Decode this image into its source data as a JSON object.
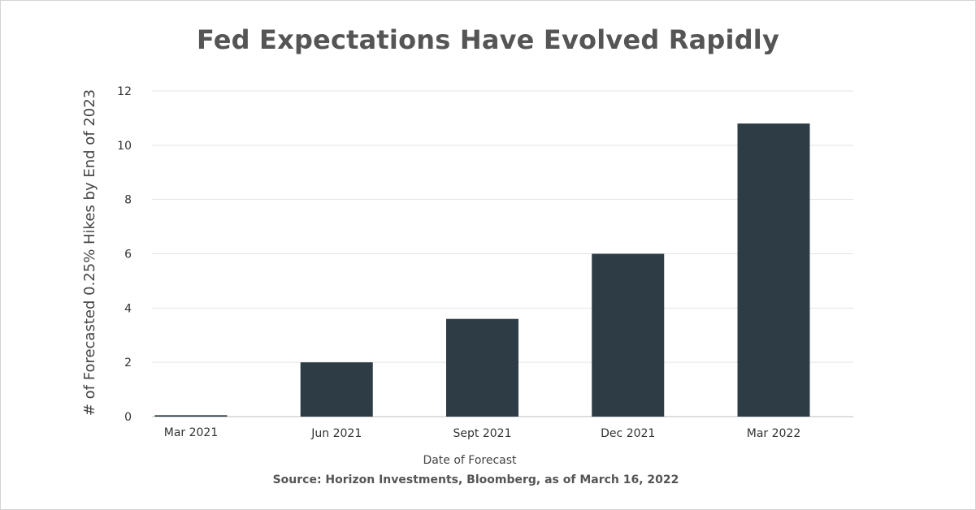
{
  "chart_data": {
    "type": "bar",
    "title": "Fed Expectations Have Evolved Rapidly",
    "categories": [
      "Mar 2021",
      "Jun 2021",
      "Sept 2021",
      "Dec 2021",
      "Mar 2022"
    ],
    "values": [
      0.05,
      2.0,
      3.6,
      6.0,
      10.8
    ],
    "xlabel": "Date of Forecast",
    "ylabel": "# of Forecasted 0.25% Hikes by End of 2023",
    "ylim": [
      0,
      12
    ],
    "yticks": [
      "0",
      "2",
      "4",
      "6",
      "8",
      "10",
      "12"
    ],
    "grid": true,
    "legend": "none",
    "bar_color": "#2e3c46",
    "source": "Source: Horizon Investments, Bloomberg, as of March 16, 2022"
  }
}
